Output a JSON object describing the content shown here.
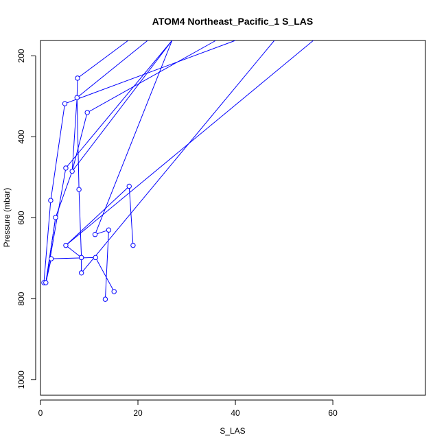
{
  "chart_data": {
    "type": "line",
    "title": "ATOM4 Northeast_Pacific_1 S_LAS",
    "xlabel": "S_LAS",
    "ylabel": "Pressure (mbar)",
    "xlim": [
      0,
      79
    ],
    "ylim": [
      1038,
      162
    ],
    "y_inverted": true,
    "x_ticks": [
      0,
      20,
      40,
      60
    ],
    "y_ticks": [
      200,
      400,
      600,
      800,
      1000
    ],
    "grid": false,
    "legend": "none",
    "series_color": "#0000ff",
    "marker": "open-circle",
    "points": [
      {
        "x": 7.6,
        "y": 255
      },
      {
        "x": 7.5,
        "y": 303
      },
      {
        "x": 5.0,
        "y": 318
      },
      {
        "x": 9.6,
        "y": 340
      },
      {
        "x": 5.2,
        "y": 477
      },
      {
        "x": 6.5,
        "y": 485
      },
      {
        "x": 7.9,
        "y": 530
      },
      {
        "x": 18.2,
        "y": 522
      },
      {
        "x": 2.1,
        "y": 557
      },
      {
        "x": 3.1,
        "y": 599
      },
      {
        "x": 14.0,
        "y": 630
      },
      {
        "x": 11.2,
        "y": 641
      },
      {
        "x": 5.2,
        "y": 668
      },
      {
        "x": 19.0,
        "y": 668
      },
      {
        "x": 8.4,
        "y": 698
      },
      {
        "x": 11.3,
        "y": 698
      },
      {
        "x": 2.2,
        "y": 701
      },
      {
        "x": 8.4,
        "y": 736
      },
      {
        "x": 0.7,
        "y": 760
      },
      {
        "x": 1.1,
        "y": 760
      },
      {
        "x": 15.1,
        "y": 782
      },
      {
        "x": 13.3,
        "y": 801
      }
    ],
    "segments": [
      [
        7.6,
        255,
        18,
        162
      ],
      [
        7.5,
        303,
        22,
        162
      ],
      [
        5.0,
        318,
        40,
        162
      ],
      [
        9.6,
        340,
        36,
        162
      ],
      [
        5.2,
        477,
        27,
        162
      ],
      [
        6.5,
        485,
        27,
        162
      ],
      [
        7.5,
        303,
        6.5,
        485
      ],
      [
        7.6,
        255,
        7.5,
        303
      ],
      [
        7.5,
        303,
        7.9,
        530
      ],
      [
        7.9,
        530,
        8.4,
        698
      ],
      [
        8.4,
        698,
        8.4,
        736
      ],
      [
        5.0,
        318,
        2.1,
        557
      ],
      [
        2.1,
        557,
        0.7,
        760
      ],
      [
        9.6,
        340,
        6.5,
        485
      ],
      [
        6.5,
        485,
        3.1,
        599
      ],
      [
        3.1,
        599,
        1.1,
        760
      ],
      [
        5.2,
        477,
        1.1,
        760
      ],
      [
        5.2,
        668,
        18.2,
        522
      ],
      [
        18.2,
        522,
        19.0,
        668
      ],
      [
        5.2,
        668,
        8.4,
        698
      ],
      [
        5.2,
        668,
        56,
        162
      ],
      [
        2.2,
        701,
        11.3,
        698
      ],
      [
        2.2,
        701,
        1.1,
        760
      ],
      [
        11.2,
        641,
        27,
        162
      ],
      [
        11.2,
        641,
        14.0,
        630
      ],
      [
        14.0,
        630,
        13.3,
        801
      ],
      [
        11.3,
        698,
        15.1,
        782
      ],
      [
        8.4,
        736,
        48,
        162
      ],
      [
        0.7,
        760,
        1.1,
        760
      ],
      [
        3.1,
        599,
        1.1,
        760
      ]
    ]
  }
}
